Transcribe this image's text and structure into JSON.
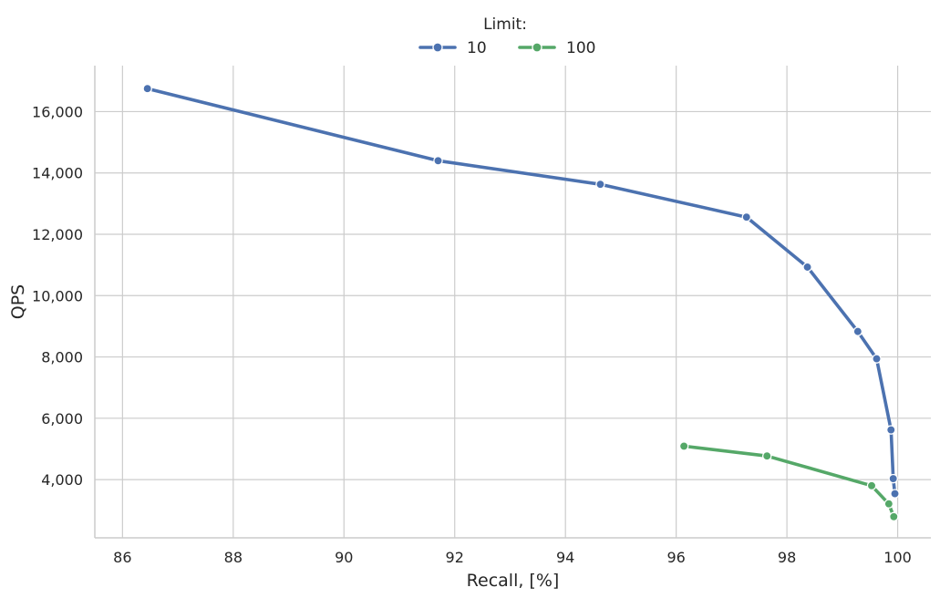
{
  "chart_data": {
    "type": "line",
    "xlabel": "Recall, [%]",
    "ylabel": "QPS",
    "xlim": [
      85.5,
      100.6
    ],
    "ylim": [
      2100,
      17500
    ],
    "xticks": [
      86,
      88,
      90,
      92,
      94,
      96,
      98,
      100
    ],
    "yticks": [
      4000,
      6000,
      8000,
      10000,
      12000,
      14000,
      16000
    ],
    "grid": true,
    "legend": {
      "title": "Limit:",
      "placement": "top-center"
    },
    "series": [
      {
        "name": "10",
        "color": "#4c72b0",
        "points": [
          [
            86.45,
            16750
          ],
          [
            91.7,
            14400
          ],
          [
            94.63,
            13630
          ],
          [
            97.27,
            12560
          ],
          [
            98.37,
            10930
          ],
          [
            99.28,
            8830
          ],
          [
            99.62,
            7940
          ],
          [
            99.88,
            5620
          ],
          [
            99.92,
            4030
          ],
          [
            99.95,
            3540
          ]
        ]
      },
      {
        "name": "100",
        "color": "#55a868",
        "points": [
          [
            96.14,
            5090
          ],
          [
            97.64,
            4770
          ],
          [
            99.53,
            3800
          ],
          [
            99.84,
            3210
          ],
          [
            99.93,
            2790
          ]
        ]
      }
    ]
  }
}
